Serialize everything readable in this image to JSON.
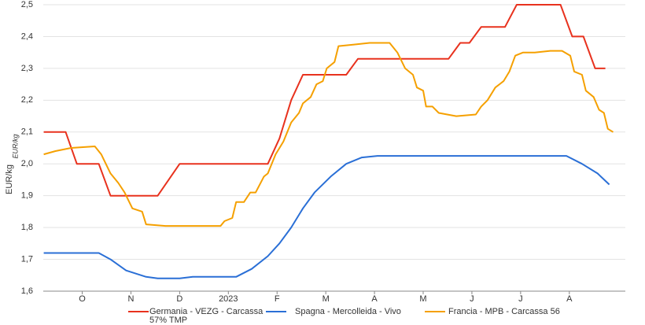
{
  "chart_data": {
    "type": "line",
    "ylabel": "EUR/kg",
    "ylabel_note": "EUR/kg",
    "ylim": [
      1.6,
      2.5
    ],
    "yticks": [
      {
        "value": 1.6,
        "label": "1,6"
      },
      {
        "value": 1.7,
        "label": "1,7"
      },
      {
        "value": 1.8,
        "label": "1,8"
      },
      {
        "value": 1.9,
        "label": "1,9"
      },
      {
        "value": 2.0,
        "label": "2,0"
      },
      {
        "value": 2.1,
        "label": "2,1"
      },
      {
        "value": 2.2,
        "label": "2,2"
      },
      {
        "value": 2.3,
        "label": "2,3"
      },
      {
        "value": 2.4,
        "label": "2,4"
      },
      {
        "value": 2.5,
        "label": "2,5"
      }
    ],
    "xlim": [
      0.2,
      12.15
    ],
    "xticks": [
      {
        "value": 1,
        "label": "O"
      },
      {
        "value": 2,
        "label": "N"
      },
      {
        "value": 3,
        "label": "D"
      },
      {
        "value": 4,
        "label": "2023"
      },
      {
        "value": 5,
        "label": "F"
      },
      {
        "value": 6,
        "label": "M"
      },
      {
        "value": 7,
        "label": "A"
      },
      {
        "value": 8,
        "label": "M"
      },
      {
        "value": 9,
        "label": "J"
      },
      {
        "value": 10,
        "label": "J"
      },
      {
        "value": 11,
        "label": "A"
      }
    ],
    "grid": true,
    "series": [
      {
        "name": "Germania - VEZG - Carcassa 57% TMP",
        "color": "#e8321e",
        "x": [
          0.21,
          0.66,
          0.89,
          1.34,
          1.58,
          2.55,
          3.0,
          4.81,
          5.05,
          5.29,
          5.53,
          6.42,
          6.66,
          8.52,
          8.76,
          8.95,
          9.19,
          9.68,
          9.92,
          10.82,
          11.06,
          11.29,
          11.53,
          11.74
        ],
        "values": [
          2.1,
          2.1,
          2.0,
          2.0,
          1.9,
          1.9,
          2.0,
          2.0,
          2.08,
          2.2,
          2.28,
          2.28,
          2.33,
          2.33,
          2.38,
          2.38,
          2.43,
          2.43,
          2.5,
          2.5,
          2.4,
          2.4,
          2.3,
          2.3
        ]
      },
      {
        "name": "Spagna - Mercolleida - Vivo",
        "color": "#2a6fd6",
        "x": [
          0.21,
          1.34,
          1.58,
          1.9,
          2.31,
          2.55,
          3.0,
          3.27,
          4.16,
          4.48,
          4.81,
          5.05,
          5.29,
          5.53,
          5.77,
          6.1,
          6.42,
          6.74,
          7.06,
          10.61,
          10.94,
          11.26,
          11.58,
          11.82
        ],
        "values": [
          1.72,
          1.72,
          1.7,
          1.665,
          1.645,
          1.64,
          1.64,
          1.645,
          1.645,
          1.67,
          1.71,
          1.75,
          1.8,
          1.86,
          1.91,
          1.96,
          2.0,
          2.02,
          2.025,
          2.025,
          2.025,
          2.0,
          1.97,
          1.935
        ]
      },
      {
        "name": "Francia - MPB - Carcassa 56",
        "color": "#f5a000",
        "x": [
          0.21,
          0.45,
          0.77,
          1.26,
          1.39,
          1.58,
          1.74,
          1.87,
          2.03,
          2.23,
          2.31,
          2.71,
          3.84,
          3.92,
          4.08,
          4.16,
          4.32,
          4.45,
          4.56,
          4.73,
          4.81,
          4.97,
          5.13,
          5.29,
          5.45,
          5.53,
          5.69,
          5.81,
          5.94,
          6.02,
          6.18,
          6.26,
          6.58,
          6.9,
          7.31,
          7.47,
          7.63,
          7.79,
          7.87,
          8.0,
          8.06,
          8.19,
          8.32,
          8.68,
          9.08,
          9.19,
          9.32,
          9.48,
          9.65,
          9.77,
          9.89,
          10.05,
          10.29,
          10.61,
          10.85,
          11.02,
          11.1,
          11.26,
          11.34,
          11.5,
          11.61,
          11.71,
          11.79,
          11.9
        ],
        "values": [
          2.03,
          2.04,
          2.05,
          2.055,
          2.03,
          1.97,
          1.94,
          1.91,
          1.86,
          1.85,
          1.81,
          1.805,
          1.805,
          1.82,
          1.83,
          1.88,
          1.88,
          1.91,
          1.91,
          1.96,
          1.97,
          2.03,
          2.07,
          2.13,
          2.16,
          2.19,
          2.21,
          2.25,
          2.26,
          2.3,
          2.32,
          2.37,
          2.375,
          2.38,
          2.38,
          2.35,
          2.3,
          2.28,
          2.24,
          2.23,
          2.18,
          2.18,
          2.16,
          2.15,
          2.155,
          2.18,
          2.2,
          2.24,
          2.26,
          2.29,
          2.34,
          2.35,
          2.35,
          2.355,
          2.355,
          2.34,
          2.29,
          2.28,
          2.23,
          2.21,
          2.17,
          2.16,
          2.11,
          2.1
        ]
      }
    ]
  }
}
